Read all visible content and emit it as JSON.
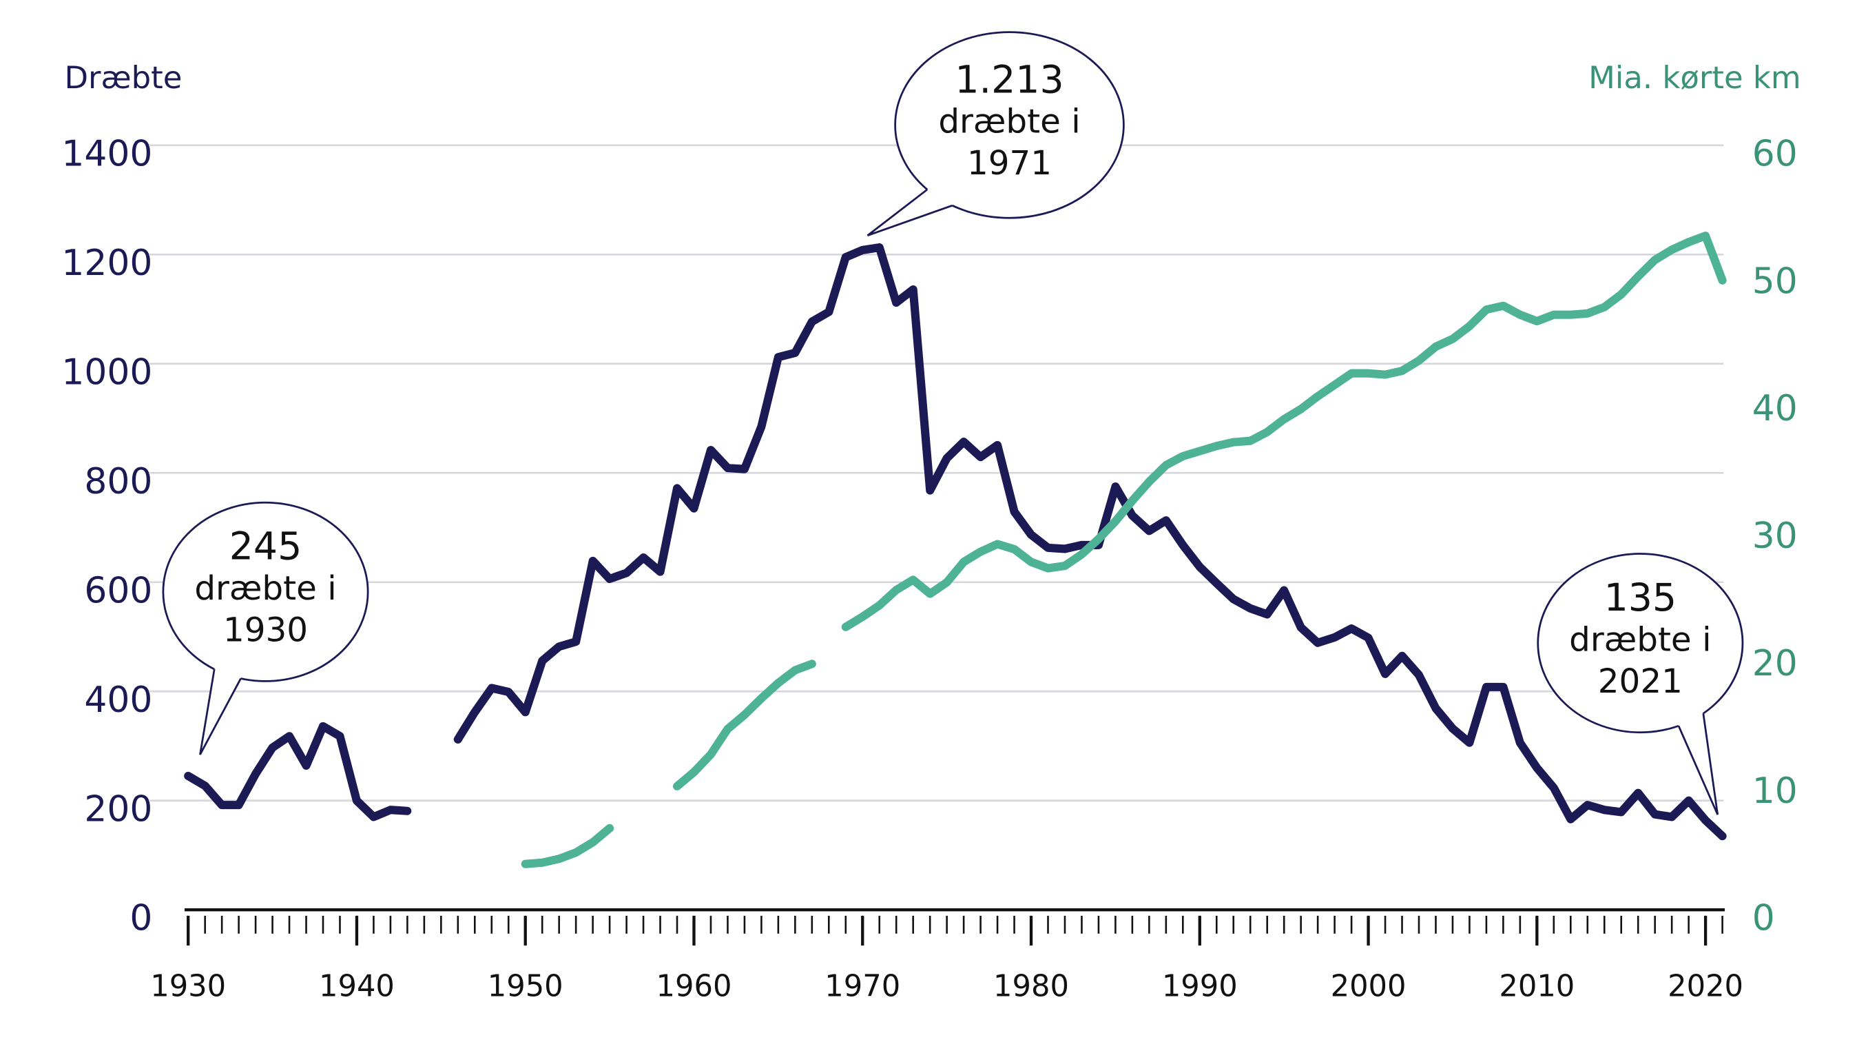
{
  "chart_data": {
    "type": "line",
    "y_label": "Dræbte",
    "y2_label": "Mia. kørte km",
    "x": [
      1930,
      1931,
      1932,
      1933,
      1934,
      1935,
      1936,
      1937,
      1938,
      1939,
      1940,
      1941,
      1942,
      1943,
      1944,
      1945,
      1946,
      1947,
      1948,
      1949,
      1950,
      1951,
      1952,
      1953,
      1954,
      1955,
      1956,
      1957,
      1958,
      1959,
      1960,
      1961,
      1962,
      1963,
      1964,
      1965,
      1966,
      1967,
      1968,
      1969,
      1970,
      1971,
      1972,
      1973,
      1974,
      1975,
      1976,
      1977,
      1978,
      1979,
      1980,
      1981,
      1982,
      1983,
      1984,
      1985,
      1986,
      1987,
      1988,
      1989,
      1990,
      1991,
      1992,
      1993,
      1994,
      1995,
      1996,
      1997,
      1998,
      1999,
      2000,
      2001,
      2002,
      2003,
      2004,
      2005,
      2006,
      2007,
      2008,
      2009,
      2010,
      2011,
      2012,
      2013,
      2014,
      2015,
      2016,
      2017,
      2018,
      2019,
      2020,
      2021
    ],
    "series": [
      {
        "name": "Dræbte",
        "color": "#1c1a55",
        "values": [
          245,
          227,
          192,
          192,
          249,
          297,
          318,
          264,
          336,
          318,
          200,
          170,
          183,
          181,
          null,
          null,
          312,
          362,
          406,
          399,
          362,
          456,
          482,
          491,
          639,
          606,
          617,
          645,
          619,
          772,
          735,
          842,
          809,
          807,
          885,
          1012,
          1020,
          1077,
          1095,
          1195,
          1208,
          1213,
          1112,
          1136,
          768,
          827,
          857,
          829,
          851,
          729,
          687,
          663,
          661,
          668,
          668,
          775,
          722,
          694,
          713,
          668,
          628,
          598,
          569,
          552,
          541,
          585,
          517,
          489,
          499,
          515,
          498,
          432,
          465,
          430,
          369,
          332,
          306,
          408,
          408,
          306,
          260,
          223,
          166,
          192,
          183,
          179,
          214,
          175,
          170,
          200,
          164,
          135
        ]
      },
      {
        "name": "Mia. kørte km",
        "color": "#4db394",
        "axis": "y2",
        "values": [
          null,
          null,
          null,
          null,
          null,
          null,
          null,
          null,
          null,
          null,
          null,
          null,
          null,
          null,
          null,
          null,
          null,
          null,
          null,
          null,
          3.6,
          3.7,
          4.0,
          4.5,
          5.3,
          6.4,
          null,
          null,
          null,
          9.7,
          10.8,
          12.2,
          14.2,
          15.3,
          16.6,
          17.8,
          18.8,
          19.3,
          null,
          22.2,
          23.0,
          23.9,
          25.1,
          25.9,
          24.8,
          25.7,
          27.3,
          28.1,
          28.7,
          28.3,
          27.3,
          26.8,
          27.0,
          27.9,
          29.1,
          30.5,
          32.1,
          33.6,
          34.9,
          35.6,
          36.0,
          36.4,
          36.7,
          36.8,
          37.5,
          38.5,
          39.3,
          40.3,
          41.2,
          42.1,
          42.1,
          42.0,
          42.3,
          43.1,
          44.2,
          44.8,
          45.8,
          47.1,
          47.4,
          46.7,
          46.2,
          46.7,
          46.7,
          46.8,
          47.3,
          48.3,
          49.7,
          51.0,
          51.8,
          52.4,
          52.9,
          49.4
        ]
      }
    ],
    "xlim": [
      1930,
      2021
    ],
    "xticks": [
      1930,
      1940,
      1950,
      1960,
      1970,
      1980,
      1990,
      2000,
      2010,
      2020
    ],
    "ylim": [
      0,
      1400
    ],
    "yticks": [
      0,
      200,
      400,
      600,
      800,
      1000,
      1200,
      1400
    ],
    "y2lim": [
      0,
      60
    ],
    "y2ticks": [
      0,
      10,
      20,
      30,
      40,
      50,
      60
    ],
    "grid": true,
    "annotations": [
      {
        "lines": [
          "245",
          "dræbte i",
          "1930"
        ],
        "x": 1930,
        "series": 0
      },
      {
        "lines": [
          "1.213",
          "dræbte i",
          "1971"
        ],
        "x": 1971,
        "series": 0
      },
      {
        "lines": [
          "135",
          "dræbte i",
          "2021"
        ],
        "x": 2021,
        "series": 0
      }
    ]
  }
}
